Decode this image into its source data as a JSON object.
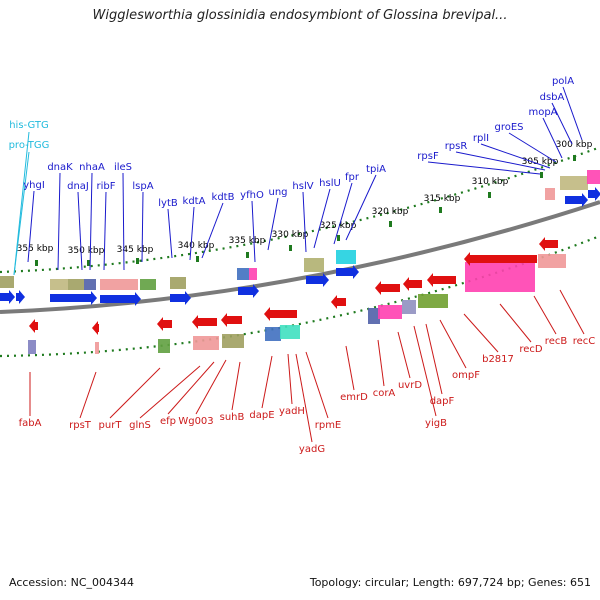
{
  "header": {
    "title": "Wigglesworthia glossinidia endosymbiont of Glossina brevipal..."
  },
  "footer": {
    "accession": "Accession: NC_004344",
    "summary": "Topology: circular; Length: 697,724 bp; Genes: 651"
  },
  "colors": {
    "forward_label": "#1a1acc",
    "reverse_label": "#cc1a1a",
    "rna_label": "#22bbdd",
    "tick_green": "#1f7a1f",
    "backbone": "#7a7a7a",
    "forward_arrow": "#1030e0",
    "reverse_arrow": "#e01010"
  },
  "scale_ticks": [
    "300 kbp",
    "305 kbp",
    "310 kbp",
    "315 kbp",
    "320 kbp",
    "325 kbp",
    "330 kbp",
    "335 kbp",
    "340 kbp",
    "345 kbp",
    "350 kbp",
    "355 kbp"
  ],
  "rna_genes": [
    "his-GTG",
    "pro-TGG"
  ],
  "forward_genes": [
    "yhgI",
    "dnaK",
    "dnaJ",
    "nhaA",
    "ribF",
    "ileS",
    "lspA",
    "lytB",
    "kdtA",
    "kdtB",
    "yfhO",
    "ung",
    "hslV",
    "hslU",
    "fpr",
    "tpiA",
    "rpsF",
    "rpsR",
    "rplI",
    "groES",
    "mopA",
    "dsbA",
    "polA"
  ],
  "reverse_genes": [
    "fabA",
    "rpsT",
    "purT",
    "glnS",
    "efp",
    "Wg003",
    "suhB",
    "dapE",
    "yadH",
    "yadG",
    "rpmE",
    "emrD",
    "corA",
    "uvrD",
    "yigB",
    "dapF",
    "ompF",
    "b2817",
    "recD",
    "recB",
    "recC"
  ]
}
